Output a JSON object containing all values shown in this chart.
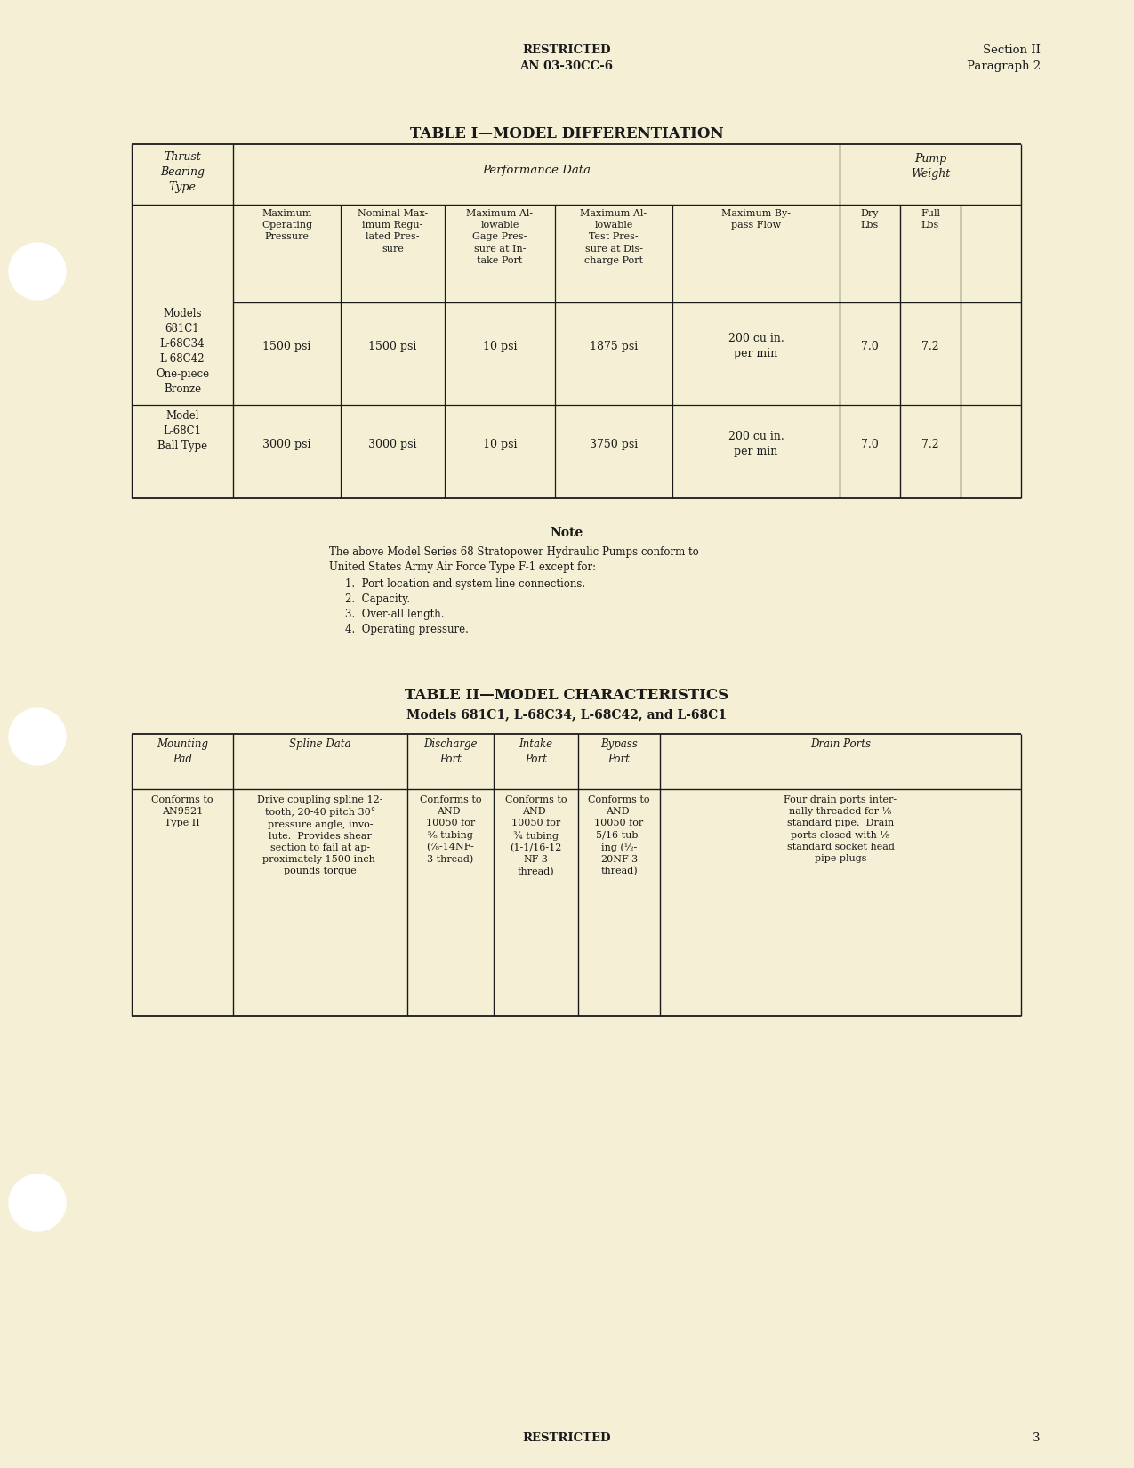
{
  "bg_color": "#f5f0d5",
  "text_color": "#1a1a1a",
  "header_c1": "RESTRICTED",
  "header_c2": "AN 03-30CC-6",
  "header_r1": "Section II",
  "header_r2": "Paragraph 2",
  "table1_title": "TABLE I—MODEL DIFFERENTIATION",
  "table1_col0_header": "Thrust\nBearing\nType",
  "table1_perf_header": "Performance Data",
  "table1_pump_header": "Pump\nWeight",
  "table1_subcols": [
    "Maximum\nOperating\nPressure",
    "Nominal Max-\nimum Regu-\nlated Pres-\nsure",
    "Maximum Al-\nlowable\nGage Pres-\nsure at In-\ntake Port",
    "Maximum Al-\nlowable\nTest Pres-\nsure at Dis-\ncharge Port",
    "Maximum By-\npass Flow",
    "Dry\nLbs",
    "Full\nLbs"
  ],
  "table1_row1_label": "Models\n681C1\nL-68C34\nL-68C42\nOne-piece\nBronze",
  "table1_row1_data": [
    "1500 psi",
    "1500 psi",
    "10 psi",
    "1875 psi",
    "200 cu in.\nper min",
    "7.0",
    "7.2"
  ],
  "table1_row2_label": "Model\nL-68C1\nBall Type",
  "table1_row2_data": [
    "3000 psi",
    "3000 psi",
    "10 psi",
    "3750 psi",
    "200 cu in.\nper min",
    "7.0",
    "7.2"
  ],
  "note_title": "Note",
  "note_intro": "The above Model Series 68 Stratopower Hydraulic Pumps conform to\nUnited States Army Air Force Type F-1 except for:",
  "note_items": [
    "1.  Port location and system line connections.",
    "2.  Capacity.",
    "3.  Over-all length.",
    "4.  Operating pressure."
  ],
  "table2_title": "TABLE II—MODEL CHARACTERISTICS",
  "table2_subtitle": "Models 681C1, L-68C34, L-68C42, and L-68C1",
  "table2_col_headers": [
    "Mounting\nPad",
    "Spline Data",
    "Discharge\nPort",
    "Intake\nPort",
    "Bypass\nPort",
    "Drain Ports"
  ],
  "table2_row_data": [
    "Conforms to\nAN9521\nType II",
    "Drive coupling spline 12-\ntooth, 20-40 pitch 30°\npressure angle, invo-\nlute.  Provides shear\nsection to fail at ap-\nproximately 1500 inch-\npounds torque",
    "Conforms to\nAND-\n10050 for\n⁵⁄₈ tubing\n(⁷⁄₈-14NF-\n3 thread)",
    "Conforms to\nAND-\n10050 for\n¾ tubing\n(1-1/16-12\nNF-3\nthread)",
    "Conforms to\nAND-\n10050 for\n5/16 tub-\ning (½-\n20NF-3\nthread)",
    "Four drain ports inter-\nnally threaded for ⅛\nstandard pipe.  Drain\nports closed with ⅛\nstandard socket head\npipe plugs"
  ],
  "footer_center": "RESTRICTED",
  "footer_page": "3"
}
